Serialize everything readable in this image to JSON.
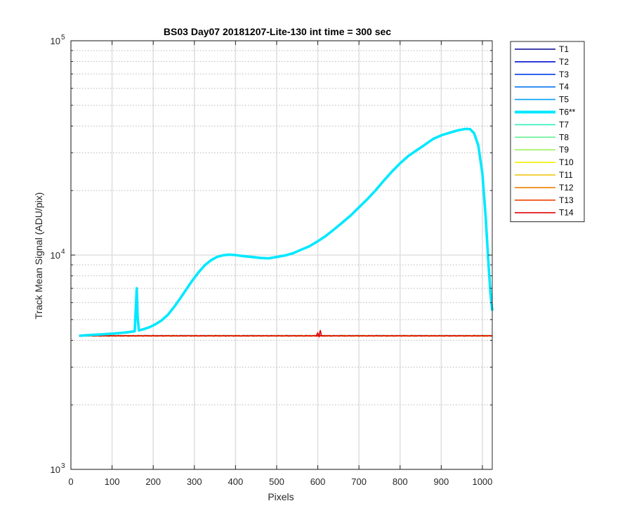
{
  "chart_data": {
    "type": "line",
    "title": "BS03 Day07 20181207-Lite-130 int time = 300 sec",
    "xlabel": "Pixels",
    "ylabel": "Track Mean Signal (ADU/pix)",
    "xlim": [
      0,
      1024
    ],
    "ylim": [
      1000,
      100000
    ],
    "yscale": "log",
    "grid": true,
    "legend_position": "outside-right",
    "x_ticks": [
      "0",
      "100",
      "200",
      "300",
      "400",
      "500",
      "600",
      "700",
      "800",
      "900",
      "1000"
    ],
    "y_ticks": [
      {
        "base": "10",
        "exp": "3"
      },
      {
        "base": "10",
        "exp": "4"
      },
      {
        "base": "10",
        "exp": "5"
      }
    ],
    "baseline_level": 4200,
    "highlighted_series": "T6**",
    "series": [
      {
        "name": "T1",
        "color": "#000090"
      },
      {
        "name": "T2",
        "color": "#0010D0"
      },
      {
        "name": "T3",
        "color": "#0040E8"
      },
      {
        "name": "T4",
        "color": "#0070F0"
      },
      {
        "name": "T5",
        "color": "#00A0F8"
      },
      {
        "name": "T6**",
        "color": "#00E8FF",
        "points": [
          [
            20,
            4200
          ],
          [
            40,
            4230
          ],
          [
            60,
            4250
          ],
          [
            80,
            4270
          ],
          [
            100,
            4300
          ],
          [
            120,
            4330
          ],
          [
            140,
            4370
          ],
          [
            155,
            4410
          ],
          [
            158,
            5800
          ],
          [
            160,
            7000
          ],
          [
            162,
            5200
          ],
          [
            165,
            4450
          ],
          [
            175,
            4500
          ],
          [
            190,
            4600
          ],
          [
            205,
            4750
          ],
          [
            220,
            4950
          ],
          [
            235,
            5250
          ],
          [
            250,
            5700
          ],
          [
            265,
            6250
          ],
          [
            280,
            6900
          ],
          [
            295,
            7600
          ],
          [
            310,
            8300
          ],
          [
            325,
            8950
          ],
          [
            340,
            9450
          ],
          [
            355,
            9800
          ],
          [
            370,
            9980
          ],
          [
            385,
            10050
          ],
          [
            400,
            10000
          ],
          [
            420,
            9880
          ],
          [
            440,
            9800
          ],
          [
            460,
            9700
          ],
          [
            480,
            9650
          ],
          [
            500,
            9800
          ],
          [
            520,
            9950
          ],
          [
            540,
            10200
          ],
          [
            560,
            10600
          ],
          [
            580,
            11000
          ],
          [
            600,
            11600
          ],
          [
            620,
            12300
          ],
          [
            640,
            13200
          ],
          [
            660,
            14200
          ],
          [
            680,
            15300
          ],
          [
            700,
            16700
          ],
          [
            720,
            18200
          ],
          [
            740,
            20000
          ],
          [
            760,
            22200
          ],
          [
            780,
            24500
          ],
          [
            800,
            26800
          ],
          [
            820,
            29000
          ],
          [
            840,
            30800
          ],
          [
            860,
            32700
          ],
          [
            880,
            34800
          ],
          [
            900,
            36200
          ],
          [
            920,
            37200
          ],
          [
            940,
            38200
          ],
          [
            960,
            38800
          ],
          [
            970,
            38700
          ],
          [
            980,
            37000
          ],
          [
            990,
            32500
          ],
          [
            1000,
            24000
          ],
          [
            1008,
            15000
          ],
          [
            1015,
            9000
          ],
          [
            1020,
            6500
          ],
          [
            1024,
            5500
          ]
        ]
      },
      {
        "name": "T7",
        "color": "#30F0C0"
      },
      {
        "name": "T8",
        "color": "#60F090"
      },
      {
        "name": "T9",
        "color": "#A0F060"
      },
      {
        "name": "T10",
        "color": "#F0F000"
      },
      {
        "name": "T11",
        "color": "#F0C000"
      },
      {
        "name": "T12",
        "color": "#F08000"
      },
      {
        "name": "T13",
        "color": "#F04000"
      },
      {
        "name": "T14",
        "color": "#E00000"
      }
    ]
  }
}
